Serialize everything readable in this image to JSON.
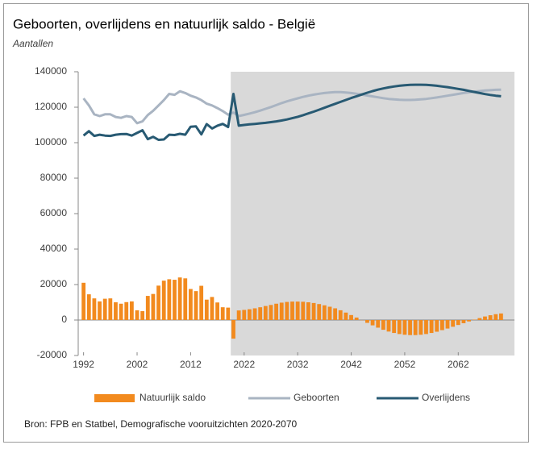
{
  "chart_data": {
    "type": "combo",
    "title": "Geboorten, overlijdens en natuurlijk saldo - België",
    "subtitle": "Aantallen",
    "source": "Bron: FPB en Statbel, Demografische vooruitzichten 2020-2070",
    "x": [
      1992,
      1993,
      1994,
      1995,
      1996,
      1997,
      1998,
      1999,
      2000,
      2001,
      2002,
      2003,
      2004,
      2005,
      2006,
      2007,
      2008,
      2009,
      2010,
      2011,
      2012,
      2013,
      2014,
      2015,
      2016,
      2017,
      2018,
      2019,
      2020,
      2021,
      2022,
      2023,
      2024,
      2025,
      2026,
      2027,
      2028,
      2029,
      2030,
      2031,
      2032,
      2033,
      2034,
      2035,
      2036,
      2037,
      2038,
      2039,
      2040,
      2041,
      2042,
      2043,
      2044,
      2045,
      2046,
      2047,
      2048,
      2049,
      2050,
      2051,
      2052,
      2053,
      2054,
      2055,
      2056,
      2057,
      2058,
      2059,
      2060,
      2061,
      2062,
      2063,
      2064,
      2065,
      2066,
      2067,
      2068,
      2069,
      2070
    ],
    "xlim": [
      1991,
      2072.5
    ],
    "xticks": [
      1992,
      2002,
      2012,
      2022,
      2032,
      2042,
      2052,
      2062
    ],
    "ylim": [
      -20000,
      140000
    ],
    "yticks": [
      -20000,
      0,
      20000,
      40000,
      60000,
      80000,
      100000,
      120000,
      140000
    ],
    "projection_xrange": [
      2019.5,
      2072.5
    ],
    "projection_color": "#d9d9d9",
    "series": [
      {
        "name": "Natuurlijk saldo",
        "type": "bar",
        "color": "#f28a1e",
        "values": [
          21000,
          14500,
          12200,
          10500,
          12000,
          12200,
          10000,
          9200,
          10100,
          10500,
          5500,
          5000,
          13600,
          14700,
          19400,
          22200,
          23000,
          22700,
          24000,
          23500,
          17500,
          16300,
          19300,
          11500,
          13000,
          9900,
          7200,
          7000,
          -10500,
          5400,
          5700,
          6100,
          6600,
          7200,
          7900,
          8500,
          9200,
          9800,
          10200,
          10400,
          10400,
          10300,
          10000,
          9600,
          9000,
          8300,
          7500,
          6600,
          5500,
          4200,
          2800,
          1400,
          -100,
          -1600,
          -3000,
          -4300,
          -5500,
          -6500,
          -7300,
          -7900,
          -8300,
          -8500,
          -8500,
          -8300,
          -7900,
          -7300,
          -6600,
          -5700,
          -4800,
          -3800,
          -2800,
          -1800,
          -800,
          200,
          1100,
          2000,
          2700,
          3300,
          3700
        ]
      },
      {
        "name": "Geboorten",
        "type": "line",
        "color": "#a9b4c2",
        "values": [
          125000,
          121000,
          116000,
          115000,
          116000,
          116000,
          114500,
          114000,
          115000,
          114500,
          111000,
          112000,
          115600,
          118000,
          121000,
          124000,
          127500,
          127000,
          129000,
          128000,
          126500,
          125500,
          124000,
          122000,
          121000,
          119500,
          117800,
          115800,
          117000,
          115000,
          115700,
          116400,
          117200,
          118100,
          119100,
          120100,
          121200,
          122300,
          123300,
          124200,
          125000,
          125800,
          126500,
          127100,
          127600,
          128000,
          128300,
          128500,
          128500,
          128300,
          128000,
          127600,
          127100,
          126600,
          126100,
          125600,
          125100,
          124700,
          124400,
          124200,
          124100,
          124100,
          124200,
          124400,
          124700,
          125100,
          125500,
          126000,
          126500,
          127000,
          127500,
          128000,
          128400,
          128800,
          129100,
          129400,
          129600,
          129800,
          129900
        ]
      },
      {
        "name": "Overlijdens",
        "type": "line",
        "color": "#285a73",
        "values": [
          104000,
          106500,
          103800,
          104500,
          104000,
          103800,
          104500,
          104800,
          104900,
          104000,
          105500,
          107000,
          102000,
          103300,
          101600,
          101800,
          104500,
          104300,
          105000,
          104500,
          109000,
          109200,
          104700,
          110500,
          108000,
          109600,
          110600,
          108800,
          127500,
          109600,
          110000,
          110300,
          110600,
          110900,
          111200,
          111600,
          112000,
          112500,
          113100,
          113800,
          114600,
          115500,
          116500,
          117500,
          118600,
          119700,
          120800,
          121900,
          123000,
          124100,
          125200,
          126200,
          127200,
          128200,
          129100,
          129900,
          130600,
          131200,
          131700,
          132100,
          132400,
          132600,
          132700,
          132700,
          132600,
          132400,
          132100,
          131700,
          131300,
          130800,
          130300,
          129800,
          129200,
          128600,
          128000,
          127400,
          126900,
          126500,
          126200
        ]
      }
    ]
  }
}
